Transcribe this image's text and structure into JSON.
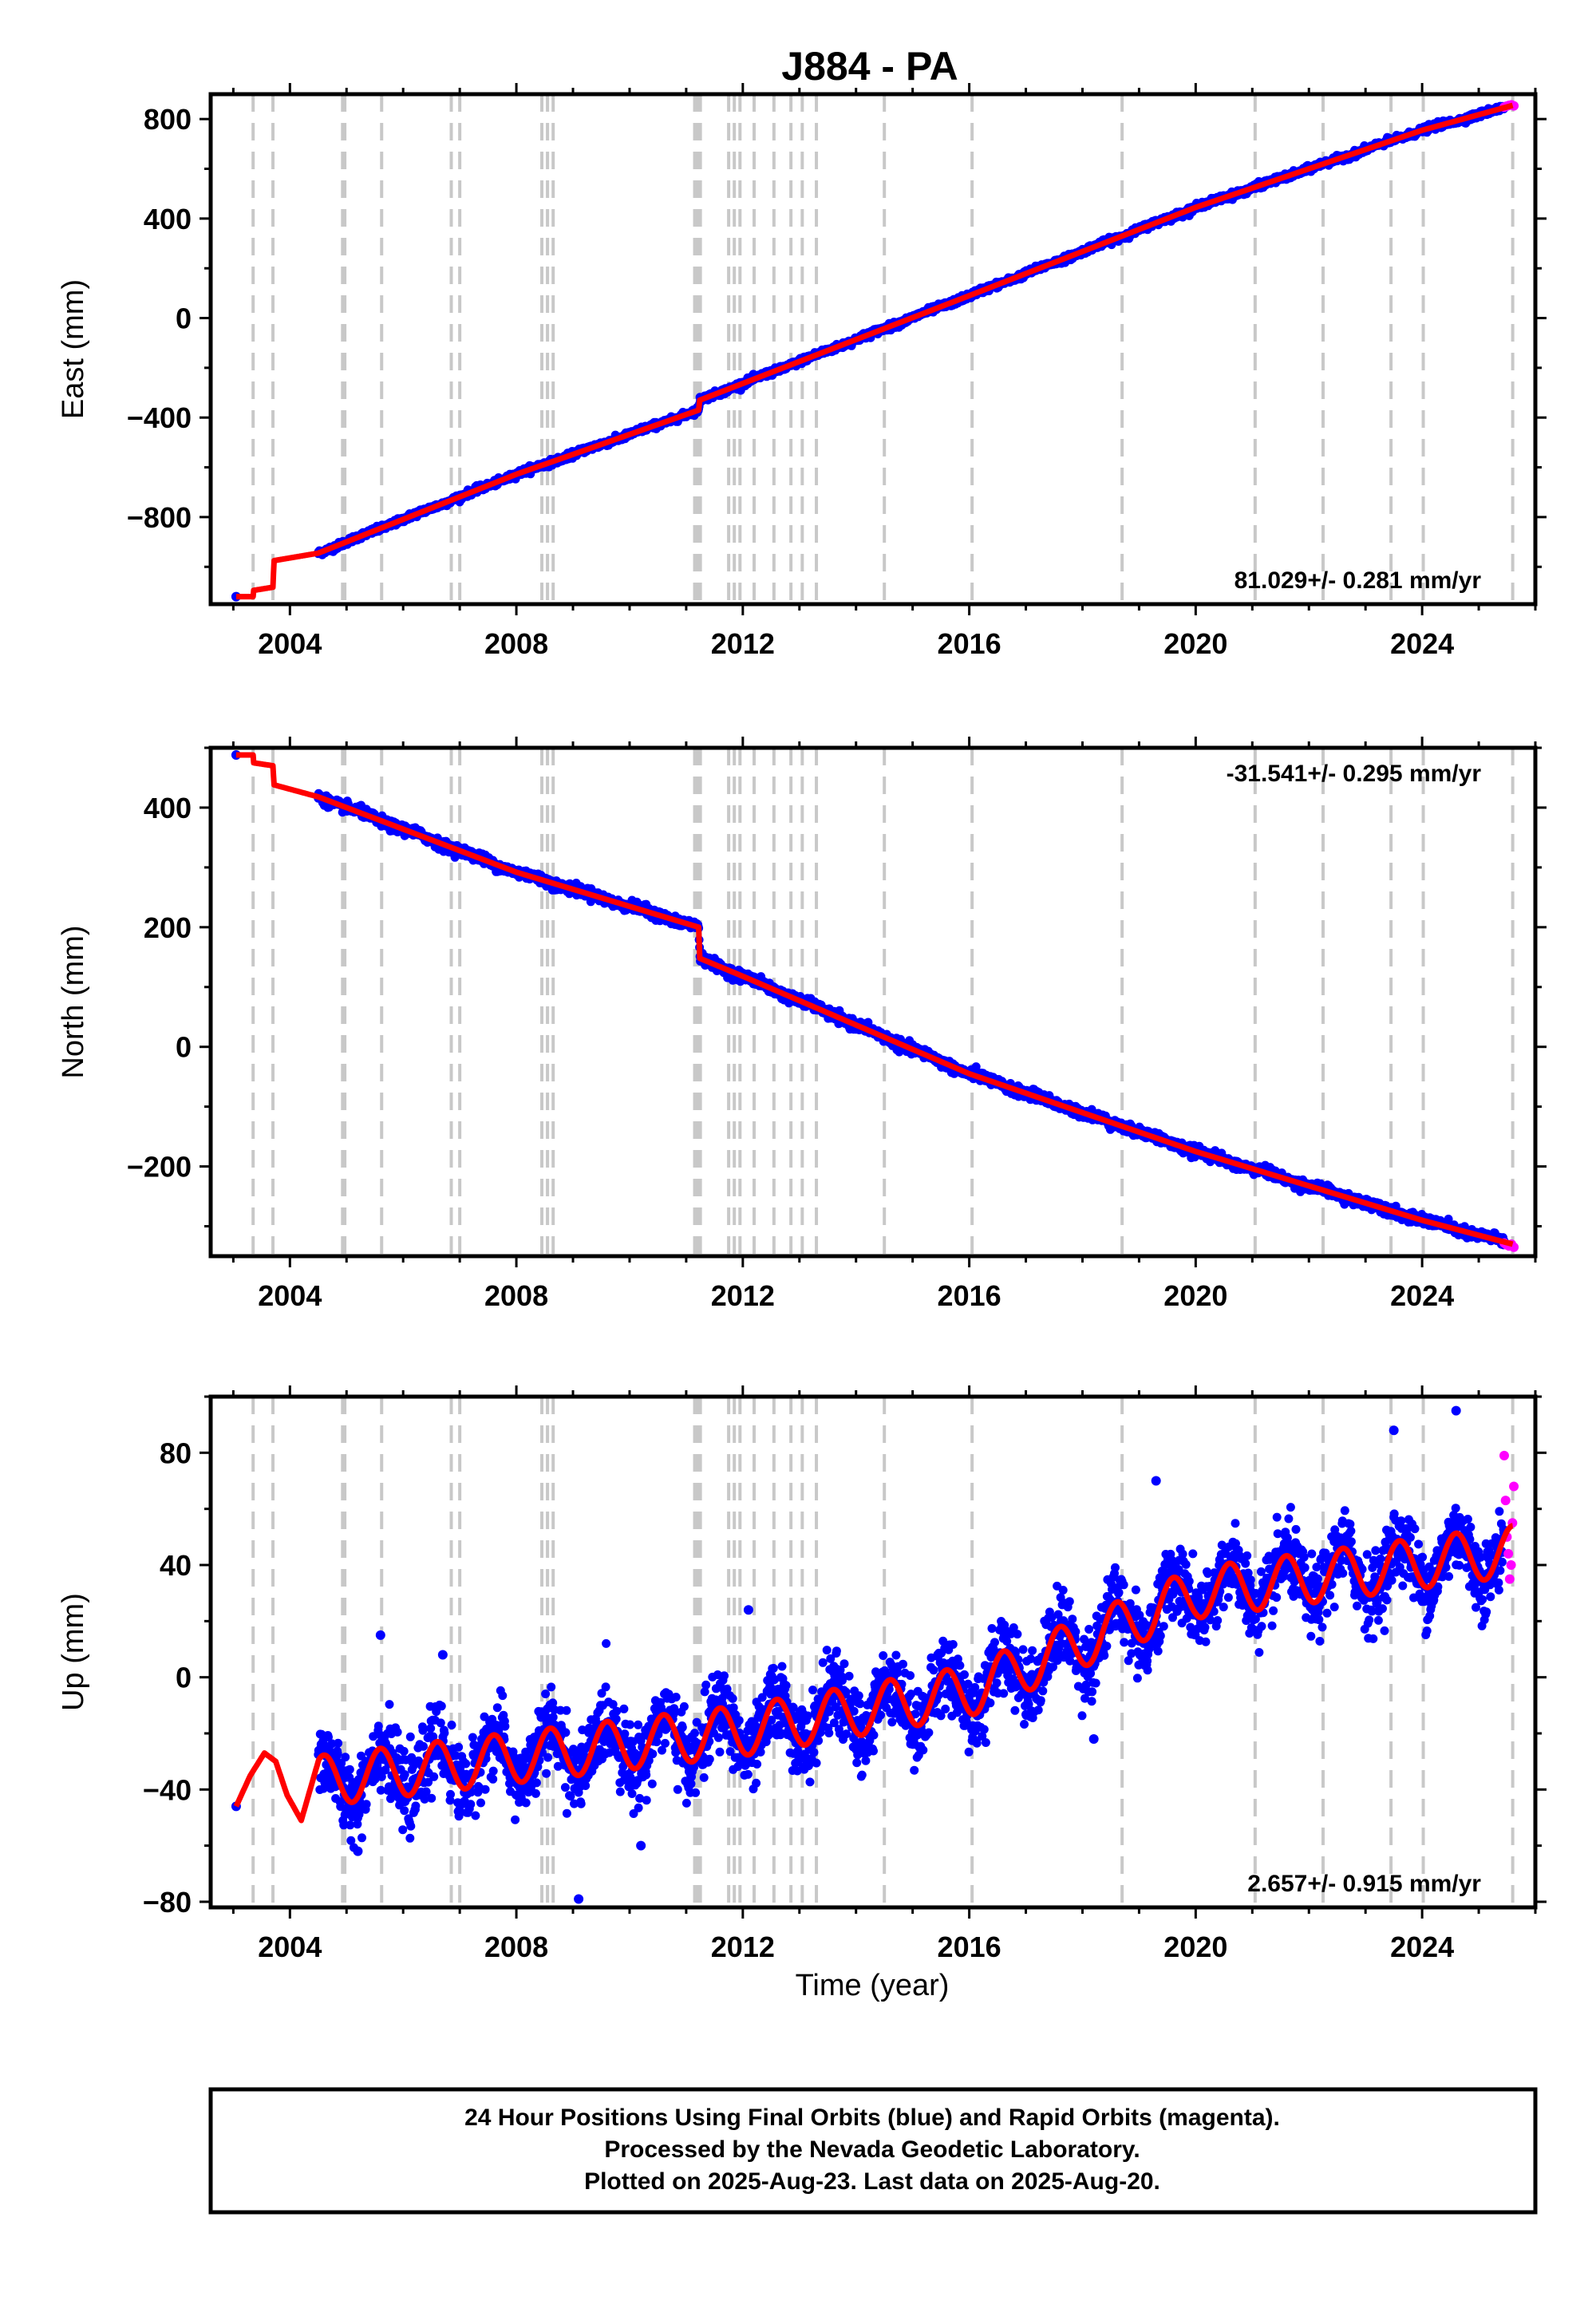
{
  "colors": {
    "final_orbits": "#0000ff",
    "rapid_orbits": "#ff00ff",
    "model": "#ff0000",
    "event_lines": "#c8c8c8",
    "frame": "#000000"
  },
  "chart_data": [
    {
      "type": "scatter",
      "panel": "east",
      "title": "J884 - PA",
      "xlabel": "",
      "ylabel": "East (mm)",
      "xlim": [
        2002.6,
        2026.0
      ],
      "ylim": [
        -1150,
        900
      ],
      "xticks": [
        2004,
        2008,
        2012,
        2016,
        2020,
        2024
      ],
      "yticks": [
        -800,
        -400,
        0,
        400,
        800
      ],
      "grid": false,
      "rate_label": "81.029+/- 0.281 mm/yr",
      "rate_position": "bottom-right",
      "event_lines": [
        2003.35,
        2003.7,
        2004.93,
        2004.97,
        2005.62,
        2006.85,
        2007.0,
        2008.45,
        2008.55,
        2008.65,
        2011.15,
        2011.2,
        2011.25,
        2011.75,
        2011.85,
        2011.95,
        2012.2,
        2012.55,
        2012.85,
        2013.05,
        2013.3,
        2014.5,
        2016.05,
        2018.7,
        2021.05,
        2022.25,
        2023.45,
        2024.02,
        2025.6
      ],
      "model": {
        "rate_mm_per_yr": 81.029,
        "points": [
          [
            2003.05,
            -1120
          ],
          [
            2003.35,
            -1120
          ],
          [
            2003.35,
            -1095
          ],
          [
            2003.7,
            -1082
          ],
          [
            2003.72,
            -975
          ],
          [
            2004.5,
            -945
          ],
          [
            2008.0,
            -628
          ],
          [
            2011.22,
            -370
          ],
          [
            2011.24,
            -330
          ],
          [
            2016.0,
            90
          ],
          [
            2020.0,
            445
          ],
          [
            2024.0,
            755
          ],
          [
            2025.6,
            855
          ]
        ]
      },
      "final_orbits": {
        "start": 2004.5,
        "end": 2025.45,
        "scatter_mm": 6,
        "seasonal_amplitude_mm": 2,
        "first_point": [
          2003.05,
          -1120
        ]
      },
      "rapid_orbits": {
        "start": 2025.45,
        "end": 2025.62,
        "values": [
          848,
          852,
          855,
          857,
          853
        ]
      }
    },
    {
      "type": "scatter",
      "panel": "north",
      "xlabel": "",
      "ylabel": "North (mm)",
      "xlim": [
        2002.6,
        2026.0
      ],
      "ylim": [
        -350,
        500
      ],
      "xticks": [
        2004,
        2008,
        2012,
        2016,
        2020,
        2024
      ],
      "yticks": [
        -200,
        0,
        200,
        400
      ],
      "grid": false,
      "rate_label": "-31.541+/- 0.295 mm/yr",
      "rate_position": "top-right",
      "event_lines": [
        2003.35,
        2003.7,
        2004.93,
        2004.97,
        2005.62,
        2006.85,
        2007.0,
        2008.45,
        2008.55,
        2008.65,
        2011.15,
        2011.2,
        2011.25,
        2011.75,
        2011.85,
        2011.95,
        2012.2,
        2012.55,
        2012.85,
        2013.05,
        2013.3,
        2014.5,
        2016.05,
        2018.7,
        2021.05,
        2022.25,
        2023.45,
        2024.02,
        2025.6
      ],
      "model": {
        "rate_mm_per_yr": -31.541,
        "points": [
          [
            2003.05,
            488
          ],
          [
            2003.35,
            488
          ],
          [
            2003.35,
            475
          ],
          [
            2003.7,
            470
          ],
          [
            2003.72,
            438
          ],
          [
            2004.5,
            418
          ],
          [
            2008.0,
            292
          ],
          [
            2011.22,
            200
          ],
          [
            2011.24,
            148
          ],
          [
            2012.0,
            118
          ],
          [
            2016.0,
            -45
          ],
          [
            2020.0,
            -175
          ],
          [
            2024.0,
            -290
          ],
          [
            2025.6,
            -330
          ]
        ]
      },
      "final_orbits": {
        "start": 2004.5,
        "end": 2025.45,
        "scatter_mm": 4,
        "seasonal_amplitude_mm": 2,
        "first_point": [
          2003.05,
          488
        ]
      },
      "rapid_orbits": {
        "start": 2025.45,
        "end": 2025.62,
        "values": [
          -328,
          -331,
          -333,
          -330,
          -335
        ]
      }
    },
    {
      "type": "scatter",
      "panel": "up",
      "xlabel": "Time (year)",
      "ylabel": "Up (mm)",
      "xlim": [
        2002.6,
        2026.0
      ],
      "ylim": [
        -82,
        100
      ],
      "xticks": [
        2004,
        2008,
        2012,
        2016,
        2020,
        2024
      ],
      "yticks": [
        -80,
        -40,
        0,
        40,
        80
      ],
      "grid": false,
      "rate_label": "2.657+/- 0.915 mm/yr",
      "rate_position": "bottom-right",
      "event_lines": [
        2003.35,
        2003.7,
        2004.93,
        2004.97,
        2005.62,
        2006.85,
        2007.0,
        2008.45,
        2008.55,
        2008.65,
        2011.15,
        2011.2,
        2011.25,
        2011.75,
        2011.85,
        2011.95,
        2012.2,
        2012.55,
        2012.85,
        2013.05,
        2013.3,
        2014.5,
        2016.05,
        2018.7,
        2021.05,
        2022.25,
        2023.45,
        2024.02,
        2025.6
      ],
      "model": {
        "note_trend": [
          [
            2004.5,
            -37
          ],
          [
            2012.0,
            -19
          ],
          [
            2016.0,
            -5
          ],
          [
            2020.0,
            30
          ],
          [
            2025.6,
            45
          ]
        ],
        "seasonal_amplitude_mm": 9,
        "seasonal_phase_peak_year_fraction": 0.6,
        "early_points": [
          [
            2003.05,
            -46
          ],
          [
            2003.3,
            -35
          ],
          [
            2003.55,
            -27
          ],
          [
            2003.75,
            -30
          ],
          [
            2003.95,
            -42
          ],
          [
            2004.2,
            -51
          ],
          [
            2004.5,
            -30
          ]
        ]
      },
      "final_orbits": {
        "start": 2004.5,
        "end": 2025.45,
        "scatter_mm": 6.5,
        "first_point": [
          2003.05,
          -46
        ],
        "outliers": [
          [
            2009.1,
            -79
          ],
          [
            2024.6,
            95
          ],
          [
            2023.5,
            88
          ],
          [
            2005.6,
            15
          ],
          [
            2006.7,
            8
          ],
          [
            2012.1,
            24
          ],
          [
            2018.2,
            -22
          ],
          [
            2010.2,
            -60
          ],
          [
            2005.2,
            -62
          ],
          [
            2019.3,
            70
          ]
        ]
      },
      "rapid_orbits": {
        "start": 2025.45,
        "end": 2025.62,
        "values": [
          79,
          63,
          50,
          44,
          35,
          40,
          55,
          68
        ]
      }
    }
  ],
  "footer": {
    "line1": "24 Hour Positions Using Final Orbits (blue) and Rapid Orbits (magenta).",
    "line2": "Processed by the Nevada Geodetic Laboratory.",
    "line3": "Plotted on 2025-Aug-23. Last data on 2025-Aug-20."
  }
}
